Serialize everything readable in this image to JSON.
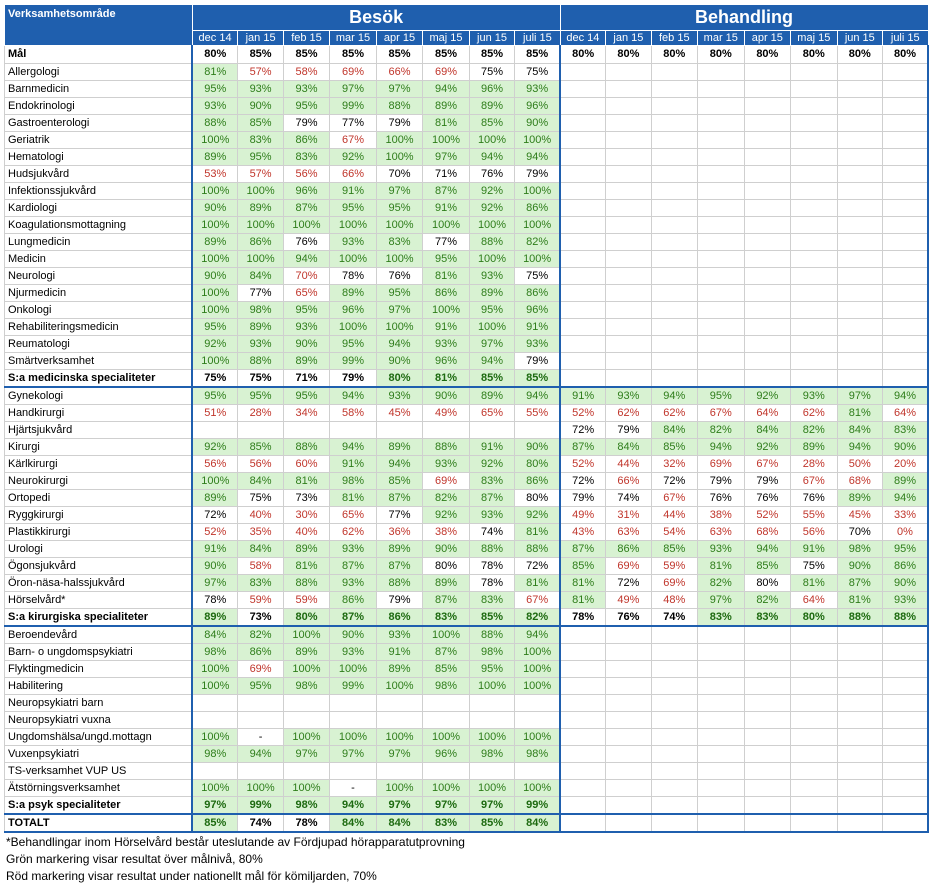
{
  "header": {
    "area_label": "Verksamhetsområde",
    "group_besok": "Besök",
    "group_behandling": "Behandling",
    "months_besok": [
      "dec 14",
      "jan 15",
      "feb 15",
      "mar 15",
      "apr 15",
      "maj 15",
      "jun 15",
      "juli 15"
    ],
    "months_behandling": [
      "dec 14",
      "jan 15",
      "feb 15",
      "mar 15",
      "apr 15",
      "maj 15",
      "jun 15",
      "juli 15"
    ]
  },
  "colors": {
    "header_bg": "#1f5fae",
    "green_bg": "#d8f2d2",
    "green_text": "#2e7d1a",
    "red_text": "#c0352b"
  },
  "rows": [
    {
      "label": "Mål",
      "kind": "mal",
      "besok": [
        "80%",
        "85%",
        "85%",
        "85%",
        "85%",
        "85%",
        "85%",
        "85%"
      ],
      "bs": "kkkkkkkk",
      "behandling": [
        "80%",
        "80%",
        "80%",
        "80%",
        "80%",
        "80%",
        "80%",
        "80%"
      ],
      "hs": "kkkkkkkk"
    },
    {
      "label": "Allergologi",
      "besok": [
        "81%",
        "57%",
        "58%",
        "69%",
        "66%",
        "69%",
        "75%",
        "75%"
      ],
      "bs": "grrrrrkk",
      "behandling": [
        "",
        "",
        "",
        "",
        "",
        "",
        "",
        ""
      ],
      "hs": ""
    },
    {
      "label": "Barnmedicin",
      "besok": [
        "95%",
        "93%",
        "93%",
        "97%",
        "97%",
        "94%",
        "96%",
        "93%"
      ],
      "bs": "gggggggg",
      "behandling": [
        "",
        "",
        "",
        "",
        "",
        "",
        "",
        ""
      ],
      "hs": ""
    },
    {
      "label": "Endokrinologi",
      "besok": [
        "93%",
        "90%",
        "95%",
        "99%",
        "88%",
        "89%",
        "89%",
        "96%"
      ],
      "bs": "gggggggg",
      "behandling": [
        "",
        "",
        "",
        "",
        "",
        "",
        "",
        ""
      ],
      "hs": ""
    },
    {
      "label": "Gastroenterologi",
      "besok": [
        "88%",
        "85%",
        "79%",
        "77%",
        "79%",
        "81%",
        "85%",
        "90%"
      ],
      "bs": "ggkkkggg",
      "behandling": [
        "",
        "",
        "",
        "",
        "",
        "",
        "",
        ""
      ],
      "hs": ""
    },
    {
      "label": "Geriatrik",
      "besok": [
        "100%",
        "83%",
        "86%",
        "67%",
        "100%",
        "100%",
        "100%",
        "100%"
      ],
      "bs": "gggrgggg",
      "behandling": [
        "",
        "",
        "",
        "",
        "",
        "",
        "",
        ""
      ],
      "hs": ""
    },
    {
      "label": "Hematologi",
      "besok": [
        "89%",
        "95%",
        "83%",
        "92%",
        "100%",
        "97%",
        "94%",
        "94%"
      ],
      "bs": "gggggggg",
      "behandling": [
        "",
        "",
        "",
        "",
        "",
        "",
        "",
        ""
      ],
      "hs": ""
    },
    {
      "label": "Hudsjukvård",
      "besok": [
        "53%",
        "57%",
        "56%",
        "66%",
        "70%",
        "71%",
        "76%",
        "79%"
      ],
      "bs": "rrrrkkkk",
      "behandling": [
        "",
        "",
        "",
        "",
        "",
        "",
        "",
        ""
      ],
      "hs": ""
    },
    {
      "label": "Infektionssjukvård",
      "besok": [
        "100%",
        "100%",
        "96%",
        "91%",
        "97%",
        "87%",
        "92%",
        "100%"
      ],
      "bs": "gggggggg",
      "behandling": [
        "",
        "",
        "",
        "",
        "",
        "",
        "",
        ""
      ],
      "hs": ""
    },
    {
      "label": "Kardiologi",
      "besok": [
        "90%",
        "89%",
        "87%",
        "95%",
        "95%",
        "91%",
        "92%",
        "86%"
      ],
      "bs": "gggggggg",
      "behandling": [
        "",
        "",
        "",
        "",
        "",
        "",
        "",
        ""
      ],
      "hs": ""
    },
    {
      "label": "Koagulationsmottagning",
      "besok": [
        "100%",
        "100%",
        "100%",
        "100%",
        "100%",
        "100%",
        "100%",
        "100%"
      ],
      "bs": "gggggggg",
      "behandling": [
        "",
        "",
        "",
        "",
        "",
        "",
        "",
        ""
      ],
      "hs": ""
    },
    {
      "label": "Lungmedicin",
      "besok": [
        "89%",
        "86%",
        "76%",
        "93%",
        "83%",
        "77%",
        "88%",
        "82%"
      ],
      "bs": "ggkggkgg",
      "behandling": [
        "",
        "",
        "",
        "",
        "",
        "",
        "",
        ""
      ],
      "hs": ""
    },
    {
      "label": "Medicin",
      "besok": [
        "100%",
        "100%",
        "94%",
        "100%",
        "100%",
        "95%",
        "100%",
        "100%"
      ],
      "bs": "gggggggg",
      "behandling": [
        "",
        "",
        "",
        "",
        "",
        "",
        "",
        ""
      ],
      "hs": ""
    },
    {
      "label": "Neurologi",
      "besok": [
        "90%",
        "84%",
        "70%",
        "78%",
        "76%",
        "81%",
        "93%",
        "75%"
      ],
      "bs": "ggrkkggk",
      "behandling": [
        "",
        "",
        "",
        "",
        "",
        "",
        "",
        ""
      ],
      "hs": ""
    },
    {
      "label": "Njurmedicin",
      "besok": [
        "100%",
        "77%",
        "65%",
        "89%",
        "95%",
        "86%",
        "89%",
        "86%"
      ],
      "bs": "gkrggggg",
      "behandling": [
        "",
        "",
        "",
        "",
        "",
        "",
        "",
        ""
      ],
      "hs": ""
    },
    {
      "label": "Onkologi",
      "besok": [
        "100%",
        "98%",
        "95%",
        "96%",
        "97%",
        "100%",
        "95%",
        "96%"
      ],
      "bs": "gggggggg",
      "behandling": [
        "",
        "",
        "",
        "",
        "",
        "",
        "",
        ""
      ],
      "hs": ""
    },
    {
      "label": "Rehabiliteringsmedicin",
      "besok": [
        "95%",
        "89%",
        "93%",
        "100%",
        "100%",
        "91%",
        "100%",
        "91%"
      ],
      "bs": "gggggggg",
      "behandling": [
        "",
        "",
        "",
        "",
        "",
        "",
        "",
        ""
      ],
      "hs": ""
    },
    {
      "label": "Reumatologi",
      "besok": [
        "92%",
        "93%",
        "90%",
        "95%",
        "94%",
        "93%",
        "97%",
        "93%"
      ],
      "bs": "gggggggg",
      "behandling": [
        "",
        "",
        "",
        "",
        "",
        "",
        "",
        ""
      ],
      "hs": ""
    },
    {
      "label": "Smärtverksamhet",
      "besok": [
        "100%",
        "88%",
        "89%",
        "99%",
        "90%",
        "96%",
        "94%",
        "79%"
      ],
      "bs": "gggggggk",
      "behandling": [
        "",
        "",
        "",
        "",
        "",
        "",
        "",
        ""
      ],
      "hs": ""
    },
    {
      "label": "S:a medicinska specialiteter",
      "kind": "sum",
      "end": true,
      "besok": [
        "75%",
        "75%",
        "71%",
        "79%",
        "80%",
        "81%",
        "85%",
        "85%"
      ],
      "bs": "kkkkgggg",
      "behandling": [
        "",
        "",
        "",
        "",
        "",
        "",
        "",
        ""
      ],
      "hs": ""
    },
    {
      "label": "Gynekologi",
      "besok": [
        "95%",
        "95%",
        "95%",
        "94%",
        "93%",
        "90%",
        "89%",
        "94%"
      ],
      "bs": "gggggggg",
      "behandling": [
        "91%",
        "93%",
        "94%",
        "95%",
        "92%",
        "93%",
        "97%",
        "94%"
      ],
      "hs": "gggggggg"
    },
    {
      "label": "Handkirurgi",
      "besok": [
        "51%",
        "28%",
        "34%",
        "58%",
        "45%",
        "49%",
        "65%",
        "55%"
      ],
      "bs": "rrrrrrrr",
      "behandling": [
        "52%",
        "62%",
        "62%",
        "67%",
        "64%",
        "62%",
        "81%",
        "64%"
      ],
      "hs": "rrrrrrgr"
    },
    {
      "label": "Hjärtsjukvård",
      "besok": [
        "",
        "",
        "",
        "",
        "",
        "",
        "",
        ""
      ],
      "bs": "",
      "behandling": [
        "72%",
        "79%",
        "84%",
        "82%",
        "84%",
        "82%",
        "84%",
        "83%"
      ],
      "hs": "kkgggggg"
    },
    {
      "label": "Kirurgi",
      "besok": [
        "92%",
        "85%",
        "88%",
        "94%",
        "89%",
        "88%",
        "91%",
        "90%"
      ],
      "bs": "gggggggg",
      "behandling": [
        "87%",
        "84%",
        "85%",
        "94%",
        "92%",
        "89%",
        "94%",
        "90%"
      ],
      "hs": "gggggggg"
    },
    {
      "label": "Kärlkirurgi",
      "besok": [
        "56%",
        "56%",
        "60%",
        "91%",
        "94%",
        "93%",
        "92%",
        "80%"
      ],
      "bs": "rrrggggg",
      "behandling": [
        "52%",
        "44%",
        "32%",
        "69%",
        "67%",
        "28%",
        "50%",
        "20%"
      ],
      "hs": "rrrrrrrr"
    },
    {
      "label": "Neurokirurgi",
      "besok": [
        "100%",
        "84%",
        "81%",
        "98%",
        "85%",
        "69%",
        "83%",
        "86%"
      ],
      "bs": "gggggrgg",
      "behandling": [
        "72%",
        "66%",
        "72%",
        "79%",
        "79%",
        "67%",
        "68%",
        "89%"
      ],
      "hs": "krkkkrrg"
    },
    {
      "label": "Ortopedi",
      "besok": [
        "89%",
        "75%",
        "73%",
        "81%",
        "87%",
        "82%",
        "87%",
        "80%"
      ],
      "bs": "gkkggggk",
      "behandling": [
        "79%",
        "74%",
        "67%",
        "76%",
        "76%",
        "76%",
        "89%",
        "94%"
      ],
      "hs": "kkrkkkgg"
    },
    {
      "label": "Ryggkirurgi",
      "besok": [
        "72%",
        "40%",
        "30%",
        "65%",
        "77%",
        "92%",
        "93%",
        "92%"
      ],
      "bs": "krrrkggg",
      "behandling": [
        "49%",
        "31%",
        "44%",
        "38%",
        "52%",
        "55%",
        "45%",
        "33%"
      ],
      "hs": "rrrrrrrr"
    },
    {
      "label": "Plastikkirurgi",
      "besok": [
        "52%",
        "35%",
        "40%",
        "62%",
        "36%",
        "38%",
        "74%",
        "81%"
      ],
      "bs": "rrrrrrkg",
      "behandling": [
        "43%",
        "63%",
        "54%",
        "63%",
        "68%",
        "56%",
        "70%",
        "0%"
      ],
      "hs": "rrrrrrkr"
    },
    {
      "label": "Urologi",
      "besok": [
        "91%",
        "84%",
        "89%",
        "93%",
        "89%",
        "90%",
        "88%",
        "88%"
      ],
      "bs": "gggggggg",
      "behandling": [
        "87%",
        "86%",
        "85%",
        "93%",
        "94%",
        "91%",
        "98%",
        "95%"
      ],
      "hs": "gggggggg"
    },
    {
      "label": "Ögonsjukvård",
      "besok": [
        "90%",
        "58%",
        "81%",
        "87%",
        "87%",
        "80%",
        "78%",
        "72%"
      ],
      "bs": "grgggkkk",
      "behandling": [
        "85%",
        "69%",
        "59%",
        "81%",
        "85%",
        "75%",
        "90%",
        "86%"
      ],
      "hs": "grrggkgg"
    },
    {
      "label": "Öron-näsa-halssjukvård",
      "besok": [
        "97%",
        "83%",
        "88%",
        "93%",
        "88%",
        "89%",
        "78%",
        "81%"
      ],
      "bs": "ggggggkg",
      "behandling": [
        "81%",
        "72%",
        "69%",
        "82%",
        "80%",
        "81%",
        "87%",
        "90%"
      ],
      "hs": "gkrgkggg"
    },
    {
      "label": "Hörselvård*",
      "besok": [
        "78%",
        "59%",
        "59%",
        "86%",
        "79%",
        "87%",
        "83%",
        "67%"
      ],
      "bs": "krrgkggr",
      "behandling": [
        "81%",
        "49%",
        "48%",
        "97%",
        "82%",
        "64%",
        "81%",
        "93%"
      ],
      "hs": "grrggrgg"
    },
    {
      "label": "S:a kirurgiska specialiteter",
      "kind": "sum",
      "end": true,
      "besok": [
        "89%",
        "73%",
        "80%",
        "87%",
        "86%",
        "83%",
        "85%",
        "82%"
      ],
      "bs": "gkgggggg",
      "behandling": [
        "78%",
        "76%",
        "74%",
        "83%",
        "83%",
        "80%",
        "88%",
        "88%"
      ],
      "hs": "kkkggggg"
    },
    {
      "label": "Beroendevård",
      "besok": [
        "84%",
        "82%",
        "100%",
        "90%",
        "93%",
        "100%",
        "88%",
        "94%"
      ],
      "bs": "gggggggg",
      "behandling": [
        "",
        "",
        "",
        "",
        "",
        "",
        "",
        ""
      ],
      "hs": ""
    },
    {
      "label": "Barn- o ungdomspsykiatri",
      "besok": [
        "98%",
        "86%",
        "89%",
        "93%",
        "91%",
        "87%",
        "98%",
        "100%"
      ],
      "bs": "gggggggg",
      "behandling": [
        "",
        "",
        "",
        "",
        "",
        "",
        "",
        ""
      ],
      "hs": ""
    },
    {
      "label": "Flyktingmedicin",
      "besok": [
        "100%",
        "69%",
        "100%",
        "100%",
        "89%",
        "85%",
        "95%",
        "100%"
      ],
      "bs": "grgggggg",
      "behandling": [
        "",
        "",
        "",
        "",
        "",
        "",
        "",
        ""
      ],
      "hs": ""
    },
    {
      "label": "Habilitering",
      "besok": [
        "100%",
        "95%",
        "98%",
        "99%",
        "100%",
        "98%",
        "100%",
        "100%"
      ],
      "bs": "gggggggg",
      "behandling": [
        "",
        "",
        "",
        "",
        "",
        "",
        "",
        ""
      ],
      "hs": ""
    },
    {
      "label": "Neuropsykiatri barn",
      "besok": [
        "",
        "",
        "",
        "",
        "",
        "",
        "",
        ""
      ],
      "bs": "",
      "behandling": [
        "",
        "",
        "",
        "",
        "",
        "",
        "",
        ""
      ],
      "hs": ""
    },
    {
      "label": "Neuropsykiatri vuxna",
      "besok": [
        "",
        "",
        "",
        "",
        "",
        "",
        "",
        ""
      ],
      "bs": "",
      "behandling": [
        "",
        "",
        "",
        "",
        "",
        "",
        "",
        ""
      ],
      "hs": ""
    },
    {
      "label": "Ungdomshälsa/ungd.mottagn",
      "besok": [
        "100%",
        "-",
        "100%",
        "100%",
        "100%",
        "100%",
        "100%",
        "100%"
      ],
      "bs": "gkgggggg",
      "behandling": [
        "",
        "",
        "",
        "",
        "",
        "",
        "",
        ""
      ],
      "hs": ""
    },
    {
      "label": "Vuxenpsykiatri",
      "besok": [
        "98%",
        "94%",
        "97%",
        "97%",
        "97%",
        "96%",
        "98%",
        "98%"
      ],
      "bs": "gggggggg",
      "behandling": [
        "",
        "",
        "",
        "",
        "",
        "",
        "",
        ""
      ],
      "hs": ""
    },
    {
      "label": "TS-verksamhet VUP US",
      "besok": [
        "",
        "",
        "",
        "",
        "",
        "",
        "",
        ""
      ],
      "bs": "",
      "behandling": [
        "",
        "",
        "",
        "",
        "",
        "",
        "",
        ""
      ],
      "hs": ""
    },
    {
      "label": "Ätstörningsverksamhet",
      "besok": [
        "100%",
        "100%",
        "100%",
        "-",
        "100%",
        "100%",
        "100%",
        "100%"
      ],
      "bs": "gggkgggg",
      "behandling": [
        "",
        "",
        "",
        "",
        "",
        "",
        "",
        ""
      ],
      "hs": ""
    },
    {
      "label": "S:a psyk specialiteter",
      "kind": "sum",
      "end": true,
      "besok": [
        "97%",
        "99%",
        "98%",
        "94%",
        "97%",
        "97%",
        "97%",
        "99%"
      ],
      "bs": "gggggggg",
      "behandling": [
        "",
        "",
        "",
        "",
        "",
        "",
        "",
        ""
      ],
      "hs": ""
    },
    {
      "label": "TOTALT",
      "kind": "sum",
      "end": true,
      "besok": [
        "85%",
        "74%",
        "78%",
        "84%",
        "84%",
        "83%",
        "85%",
        "84%"
      ],
      "bs": "gkkggggg",
      "behandling": [
        "",
        "",
        "",
        "",
        "",
        "",
        "",
        ""
      ],
      "hs": ""
    }
  ],
  "notes": [
    "*Behandlingar inom Hörselvård består uteslutande av Fördjupad hörapparatutprovning",
    "Grön markering visar resultat över målnivå, 80%",
    "Röd markering visar resultat under nationellt mål för kömiljarden, 70%"
  ]
}
